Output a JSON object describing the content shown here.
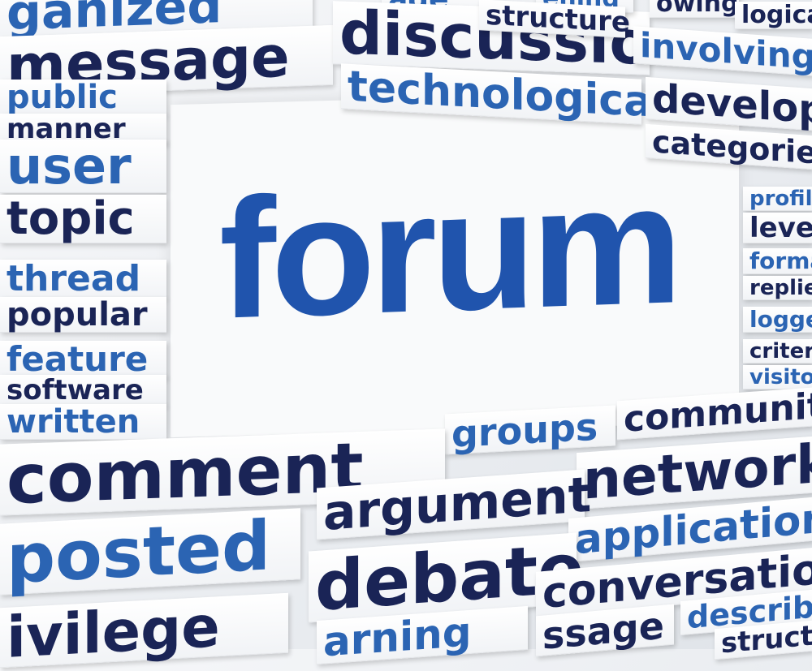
{
  "title": "forum",
  "words": {
    "w_ganized": "ganized",
    "w_message": "message",
    "w_public": "public",
    "w_manner": "manner",
    "w_user": "user",
    "w_topic": "topic",
    "w_thread": "thread",
    "w_popular": "popular",
    "w_feature": "feature",
    "w_software": "software",
    "w_written": "written",
    "w_ade": "ade",
    "w_discussion": "discussion",
    "w_technological": "technological",
    "w_ehind": "ehind",
    "w_structure": "structure",
    "w_owing": "owing",
    "w_logical": "logical",
    "w_involving": "involving",
    "w_develops": "develops",
    "w_categories": "categories",
    "w_profile": "profile",
    "w_level": "level",
    "w_format": "format",
    "w_replies": "replies",
    "w_logged": "logged",
    "w_criteria": "criteria",
    "w_visitor": "visitor",
    "w_groups": "groups",
    "w_community": "community",
    "w_comment": "comment",
    "w_network": "network",
    "w_argument": "argument",
    "w_posted": "posted",
    "w_applications": "applications",
    "w_debate": "debate",
    "w_conversation": "conversation",
    "w_ivilege": "ivilege",
    "w_arning": "arning",
    "w_ssage": "ssage",
    "w_described": "described",
    "w_structu": "structu"
  }
}
